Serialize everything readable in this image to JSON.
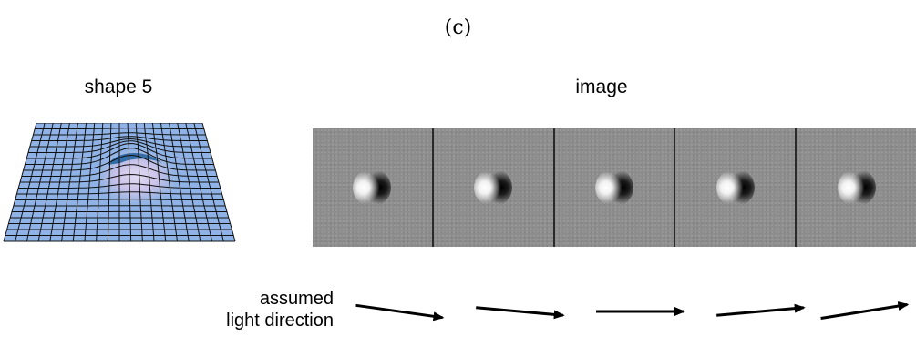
{
  "panel_label": "(c)",
  "shape_heading": "shape 5",
  "image_heading": "image",
  "light_label": {
    "line1": "assumed",
    "line2": "light direction"
  },
  "frames": [
    {
      "light_angle_deg": -8
    },
    {
      "light_angle_deg": -5
    },
    {
      "light_angle_deg": 0
    },
    {
      "light_angle_deg": 5
    },
    {
      "light_angle_deg": 9
    }
  ],
  "colors": {
    "mesh_fill": "#8fb3e6",
    "mesh_line": "#111111",
    "bump_highlight": "#dcd6f2",
    "bump_shadow": "#1f5f9a",
    "image_background": "#8d8d8d",
    "frame_separator": "#2a2a2a",
    "arrow": "#000000"
  },
  "icons": {
    "shape": "surface-mesh-with-bump",
    "arrow": "arrow-right-icon"
  }
}
